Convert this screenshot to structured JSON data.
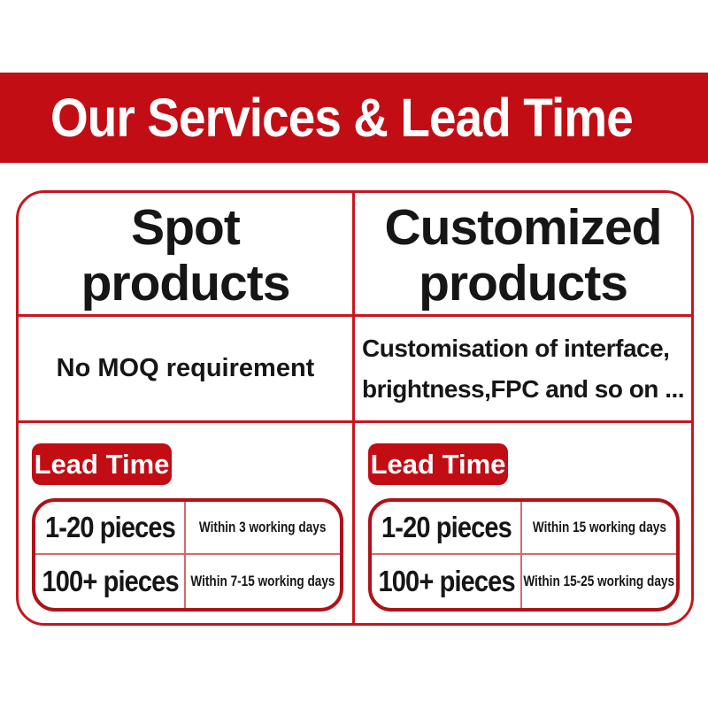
{
  "banner": {
    "title": "Our Services & Lead Time"
  },
  "colors": {
    "banner_red": "#c20d14",
    "line_red": "#c8161d",
    "dark_red": "#ae1218",
    "thin_red": "#d4696d",
    "ink": "#161616",
    "page_bg": "#ffffff"
  },
  "columns": [
    {
      "header_line1": "Spot",
      "header_line2": "products",
      "description_line1": "No MOQ requirement",
      "description_line2": "",
      "lead_time_label": "Lead Time",
      "lead_times": [
        {
          "qty": "1-20 pieces",
          "time": "Within 3 working days"
        },
        {
          "qty": "100+ pieces",
          "time": "Within 7-15 working days"
        }
      ]
    },
    {
      "header_line1": "Customized",
      "header_line2": "products",
      "description_line1": "Customisation of interface,",
      "description_line2": "brightness,FPC and so on ...",
      "lead_time_label": "Lead Time",
      "lead_times": [
        {
          "qty": "1-20 pieces",
          "time": "Within 15 working days"
        },
        {
          "qty": "100+ pieces",
          "time": "Within 15-25 working days"
        }
      ]
    }
  ]
}
